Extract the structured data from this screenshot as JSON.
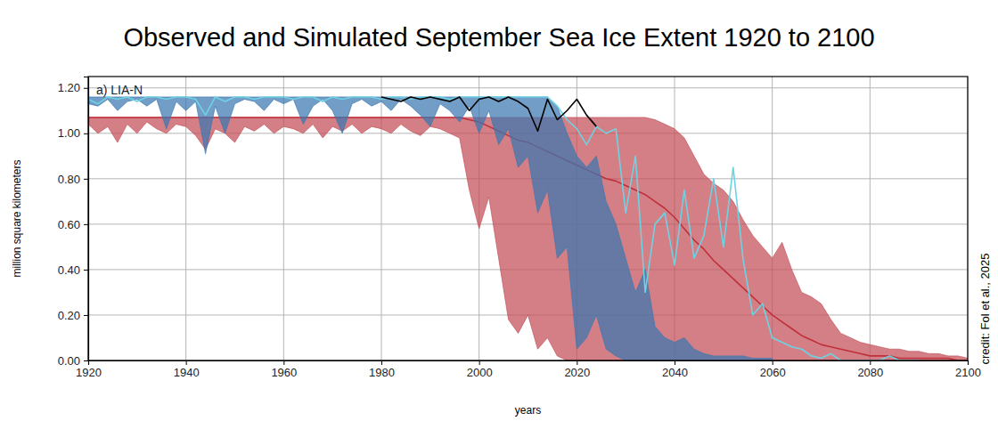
{
  "chart_data": {
    "type": "line",
    "title": "Observed and Simulated September Sea Ice Extent 1920 to 2100",
    "x_label": "years",
    "y_label": "million square kilometers",
    "annotations": [
      "a) LIA-N",
      "credit: Fol et al., 2025"
    ],
    "grid": true,
    "xlim": [
      1920,
      2100
    ],
    "xticks": [
      1920,
      1940,
      1960,
      1980,
      2000,
      2020,
      2040,
      2060,
      2080,
      2100
    ],
    "ylim": [
      0,
      1.25
    ],
    "yticks": [
      {
        "value": 0,
        "label": "0.00"
      },
      {
        "value": 0.2,
        "label": "0.20"
      },
      {
        "value": 0.4,
        "label": "0.40"
      },
      {
        "value": 0.6,
        "label": "0.60"
      },
      {
        "value": 0.8,
        "label": "0.80"
      },
      {
        "value": 1.0,
        "label": "1.00"
      },
      {
        "value": 1.2,
        "label": "1.20"
      }
    ],
    "x": [
      1920,
      1922,
      1924,
      1926,
      1928,
      1930,
      1932,
      1934,
      1936,
      1938,
      1940,
      1942,
      1944,
      1946,
      1948,
      1950,
      1952,
      1954,
      1956,
      1958,
      1960,
      1962,
      1964,
      1966,
      1968,
      1970,
      1972,
      1974,
      1976,
      1978,
      1980,
      1982,
      1984,
      1986,
      1988,
      1990,
      1992,
      1994,
      1996,
      1998,
      2000,
      2002,
      2004,
      2006,
      2008,
      2010,
      2012,
      2014,
      2016,
      2018,
      2020,
      2022,
      2024,
      2026,
      2028,
      2030,
      2032,
      2034,
      2036,
      2038,
      2040,
      2042,
      2044,
      2046,
      2048,
      2050,
      2052,
      2054,
      2056,
      2058,
      2060,
      2062,
      2064,
      2066,
      2068,
      2070,
      2072,
      2074,
      2076,
      2078,
      2080,
      2082,
      2084,
      2086,
      2088,
      2090,
      2092,
      2094,
      2096,
      2098,
      2100
    ],
    "series": [
      {
        "type": "area",
        "color": "#c44e58",
        "values": [
          1.07,
          1.07,
          1.07,
          1.07,
          1.07,
          1.07,
          1.07,
          1.07,
          1.07,
          1.07,
          1.07,
          1.07,
          1.07,
          1.07,
          1.07,
          1.07,
          1.07,
          1.07,
          1.07,
          1.07,
          1.07,
          1.07,
          1.07,
          1.07,
          1.07,
          1.07,
          1.07,
          1.07,
          1.07,
          1.07,
          1.07,
          1.07,
          1.07,
          1.07,
          1.07,
          1.07,
          1.07,
          1.07,
          1.07,
          1.07,
          1.07,
          1.07,
          1.07,
          1.07,
          1.07,
          1.07,
          1.07,
          1.07,
          1.07,
          1.07,
          1.07,
          1.07,
          1.07,
          1.07,
          1.07,
          1.07,
          1.07,
          1.07,
          1.06,
          1.04,
          1.02,
          0.98,
          0.9,
          0.82,
          0.78,
          0.75,
          0.7,
          0.62,
          0.55,
          0.5,
          0.45,
          0.52,
          0.4,
          0.3,
          0.28,
          0.25,
          0.18,
          0.12,
          0.1,
          0.08,
          0.07,
          0.06,
          0.05,
          0.05,
          0.04,
          0.04,
          0.03,
          0.03,
          0.02,
          0.02,
          0.01
        ],
        "base": [
          1.04,
          1.0,
          1.03,
          0.96,
          1.04,
          1.0,
          1.05,
          1.02,
          1.0,
          1.04,
          1.03,
          0.99,
          0.93,
          1.02,
          1.0,
          0.96,
          1.03,
          1.01,
          1.04,
          1.0,
          1.03,
          1.02,
          1.0,
          1.04,
          0.98,
          1.03,
          1.01,
          1.04,
          1.0,
          1.03,
          1.02,
          1.0,
          1.04,
          1.01,
          0.99,
          1.03,
          1.02,
          1.0,
          0.98,
          0.75,
          0.58,
          0.72,
          0.45,
          0.18,
          0.12,
          0.2,
          0.05,
          0.1,
          0.02,
          0,
          0,
          0,
          0,
          0,
          0,
          0,
          0,
          0,
          0,
          0,
          0,
          0,
          0,
          0,
          0,
          0,
          0,
          0,
          0,
          0,
          0,
          0,
          0,
          0,
          0,
          0,
          0,
          0,
          0,
          0,
          0,
          0,
          0,
          0,
          0,
          0,
          0,
          0,
          0,
          0,
          0
        ]
      },
      {
        "type": "line",
        "color": "#c0303a",
        "values": [
          1.07,
          1.07,
          1.07,
          1.07,
          1.07,
          1.07,
          1.07,
          1.07,
          1.07,
          1.07,
          1.07,
          1.07,
          1.07,
          1.07,
          1.07,
          1.07,
          1.07,
          1.07,
          1.07,
          1.07,
          1.07,
          1.07,
          1.07,
          1.07,
          1.07,
          1.07,
          1.07,
          1.07,
          1.07,
          1.07,
          1.07,
          1.07,
          1.07,
          1.07,
          1.07,
          1.07,
          1.07,
          1.07,
          1.07,
          1.06,
          1.05,
          1.03,
          1.01,
          0.99,
          0.97,
          0.96,
          0.94,
          0.92,
          0.9,
          0.88,
          0.86,
          0.84,
          0.82,
          0.8,
          0.79,
          0.77,
          0.75,
          0.73,
          0.7,
          0.67,
          0.63,
          0.58,
          0.53,
          0.49,
          0.44,
          0.4,
          0.36,
          0.32,
          0.28,
          0.24,
          0.2,
          0.17,
          0.14,
          0.11,
          0.09,
          0.07,
          0.06,
          0.05,
          0.04,
          0.03,
          0.02,
          0.02,
          0.02,
          0.01,
          0.01,
          0.01,
          0.01,
          0.01,
          0.01,
          0.0,
          0.0
        ]
      },
      {
        "type": "area",
        "color": "#3b77b0",
        "values": [
          1.16,
          1.16,
          1.16,
          1.16,
          1.16,
          1.16,
          1.16,
          1.16,
          1.16,
          1.16,
          1.16,
          1.16,
          1.16,
          1.16,
          1.16,
          1.16,
          1.16,
          1.16,
          1.16,
          1.16,
          1.16,
          1.16,
          1.16,
          1.16,
          1.16,
          1.16,
          1.16,
          1.16,
          1.16,
          1.16,
          1.16,
          1.16,
          1.16,
          1.16,
          1.16,
          1.16,
          1.16,
          1.16,
          1.16,
          1.16,
          1.16,
          1.16,
          1.16,
          1.16,
          1.16,
          1.16,
          1.16,
          1.16,
          1.12,
          1.0,
          0.9,
          0.85,
          0.9,
          0.7,
          0.6,
          0.45,
          0.3,
          0.4,
          0.15,
          0.1,
          0.08,
          0.1,
          0.05,
          0.03,
          0.02,
          0.02,
          0.02,
          0.02,
          0.01,
          0.01,
          0.01,
          null,
          null,
          null,
          null,
          null,
          null,
          null,
          null,
          null,
          null,
          null,
          null,
          null,
          null,
          null,
          null,
          null,
          null,
          null,
          null
        ],
        "base": [
          1.13,
          1.12,
          1.15,
          1.1,
          1.14,
          1.15,
          1.12,
          1.15,
          1.02,
          1.14,
          1.1,
          1.14,
          0.91,
          1.12,
          1.0,
          1.13,
          1.15,
          1.14,
          1.1,
          1.15,
          1.13,
          1.15,
          1.04,
          1.12,
          1.15,
          1.1,
          1.0,
          1.13,
          1.15,
          1.12,
          1.14,
          1.1,
          1.15,
          1.12,
          1.08,
          1.03,
          1.13,
          1.1,
          1.05,
          1.12,
          1.0,
          1.1,
          0.95,
          1.02,
          0.85,
          0.9,
          0.65,
          0.75,
          0.45,
          0.5,
          0.05,
          0.1,
          0.2,
          0.05,
          0.02,
          0,
          0,
          0,
          0,
          0,
          0,
          0,
          0,
          0,
          0,
          0,
          0,
          0,
          0,
          0,
          0,
          null,
          null,
          null,
          null,
          null,
          null,
          null,
          null,
          null,
          null,
          null,
          null,
          null,
          null,
          null,
          null,
          null,
          null,
          null,
          null
        ]
      },
      {
        "type": "line",
        "color": "#6dd3e3",
        "values": [
          1.15,
          1.13,
          1.16,
          1.15,
          1.16,
          1.14,
          1.16,
          1.16,
          1.15,
          1.16,
          1.16,
          1.15,
          1.08,
          1.16,
          1.14,
          1.16,
          1.16,
          1.15,
          1.16,
          1.16,
          1.16,
          1.15,
          1.16,
          1.16,
          1.14,
          1.16,
          1.15,
          1.16,
          1.16,
          1.16,
          1.15,
          1.16,
          1.16,
          1.15,
          1.16,
          1.16,
          1.16,
          1.15,
          1.16,
          1.16,
          1.16,
          1.16,
          1.16,
          1.16,
          1.16,
          1.16,
          1.16,
          1.16,
          1.12,
          1.06,
          1.02,
          0.95,
          1.03,
          1.0,
          1.02,
          0.65,
          0.9,
          0.3,
          0.6,
          0.65,
          0.42,
          0.75,
          0.45,
          0.55,
          0.8,
          0.5,
          0.85,
          0.45,
          0.2,
          0.25,
          0.1,
          0.08,
          0.06,
          0.05,
          0.02,
          0.01,
          0.03,
          0,
          0,
          0,
          0,
          0,
          0.02,
          0,
          0,
          0,
          null,
          null,
          null,
          null,
          null
        ]
      },
      {
        "type": "line",
        "color": "#000000",
        "values": [
          null,
          null,
          null,
          null,
          null,
          null,
          null,
          null,
          null,
          null,
          null,
          null,
          null,
          null,
          null,
          null,
          null,
          null,
          null,
          null,
          null,
          null,
          null,
          null,
          null,
          null,
          null,
          null,
          null,
          null,
          1.16,
          1.15,
          1.14,
          1.16,
          1.15,
          1.16,
          1.15,
          1.14,
          1.16,
          1.1,
          1.15,
          1.16,
          1.14,
          1.16,
          1.14,
          1.11,
          1.01,
          1.15,
          1.06,
          1.1,
          1.15,
          1.08,
          1.03,
          null,
          null,
          null,
          null,
          null,
          null,
          null,
          null,
          null,
          null,
          null,
          null,
          null,
          null,
          null,
          null,
          null,
          null,
          null,
          null,
          null,
          null,
          null,
          null,
          null,
          null,
          null,
          null,
          null,
          null,
          null,
          null,
          null,
          null,
          null,
          null,
          null,
          null
        ]
      }
    ]
  }
}
